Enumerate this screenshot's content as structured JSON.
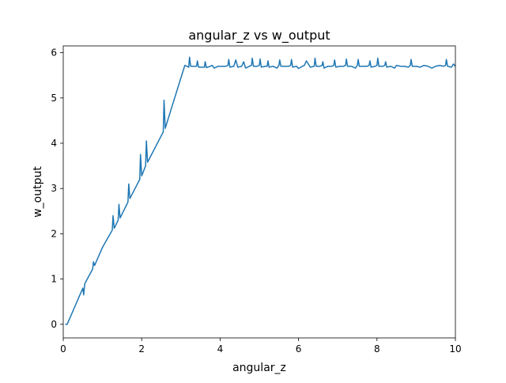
{
  "chart_data": {
    "type": "line",
    "title": "angular_z vs w_output",
    "xlabel": "angular_z",
    "ylabel": "w_output",
    "xlim": [
      0,
      10
    ],
    "ylim": [
      -0.3,
      6.15
    ],
    "xticks": [
      0,
      2,
      4,
      6,
      8,
      10
    ],
    "xtick_labels": [
      "0",
      "2",
      "4",
      "6",
      "8",
      "10"
    ],
    "yticks": [
      0,
      1,
      2,
      3,
      4,
      5,
      6
    ],
    "ytick_labels": [
      "0",
      "1",
      "2",
      "3",
      "4",
      "5",
      "6"
    ],
    "grid": false,
    "series_color": "#1f77b4",
    "series": [
      {
        "x": [
          0.05,
          0.1,
          0.5,
          0.52,
          0.55,
          0.75,
          0.77,
          0.8,
          1.0,
          1.25,
          1.27,
          1.3,
          1.4,
          1.42,
          1.45,
          1.65,
          1.67,
          1.7,
          1.95,
          1.97,
          2.0,
          2.1,
          2.12,
          2.15,
          2.55,
          2.57,
          2.6,
          3.1,
          3.15,
          3.2,
          3.22,
          3.25,
          3.4,
          3.42,
          3.45,
          3.6,
          3.62,
          3.65,
          3.75,
          3.8,
          3.85,
          3.95,
          4.05,
          4.15,
          4.2,
          4.22,
          4.25,
          4.35,
          4.4,
          4.45,
          4.55,
          4.6,
          4.65,
          4.75,
          4.8,
          4.82,
          4.85,
          4.95,
          5.0,
          5.02,
          5.05,
          5.15,
          5.2,
          5.22,
          5.25,
          5.35,
          5.45,
          5.5,
          5.52,
          5.55,
          5.65,
          5.75,
          5.8,
          5.82,
          5.85,
          5.95,
          6.0,
          6.1,
          6.15,
          6.2,
          6.3,
          6.4,
          6.42,
          6.45,
          6.55,
          6.6,
          6.62,
          6.65,
          6.75,
          6.85,
          6.9,
          6.92,
          6.95,
          7.05,
          7.15,
          7.2,
          7.22,
          7.25,
          7.35,
          7.45,
          7.5,
          7.52,
          7.55,
          7.65,
          7.75,
          7.8,
          7.82,
          7.85,
          7.95,
          8.0,
          8.02,
          8.05,
          8.15,
          8.2,
          8.22,
          8.25,
          8.35,
          8.45,
          8.5,
          8.6,
          8.7,
          8.8,
          8.85,
          8.87,
          8.9,
          9.0,
          9.1,
          9.2,
          9.3,
          9.4,
          9.5,
          9.6,
          9.7,
          9.75,
          9.77,
          9.8,
          9.9,
          9.95,
          10.0
        ],
        "y": [
          0.0,
          0.0,
          0.8,
          0.65,
          0.9,
          1.22,
          1.38,
          1.3,
          1.7,
          2.08,
          2.4,
          2.12,
          2.3,
          2.65,
          2.35,
          2.7,
          3.1,
          2.78,
          3.2,
          3.75,
          3.28,
          3.5,
          4.05,
          3.58,
          4.25,
          4.95,
          4.33,
          5.72,
          5.7,
          5.68,
          5.9,
          5.7,
          5.7,
          5.82,
          5.68,
          5.68,
          5.8,
          5.67,
          5.7,
          5.72,
          5.66,
          5.7,
          5.7,
          5.7,
          5.72,
          5.85,
          5.68,
          5.7,
          5.84,
          5.68,
          5.7,
          5.8,
          5.66,
          5.7,
          5.72,
          5.88,
          5.7,
          5.7,
          5.72,
          5.86,
          5.68,
          5.7,
          5.7,
          5.82,
          5.68,
          5.7,
          5.66,
          5.72,
          5.84,
          5.7,
          5.7,
          5.7,
          5.72,
          5.85,
          5.68,
          5.7,
          5.65,
          5.7,
          5.72,
          5.82,
          5.68,
          5.7,
          5.88,
          5.7,
          5.7,
          5.72,
          5.8,
          5.66,
          5.7,
          5.7,
          5.72,
          5.84,
          5.68,
          5.7,
          5.7,
          5.72,
          5.86,
          5.7,
          5.7,
          5.66,
          5.72,
          5.85,
          5.7,
          5.7,
          5.7,
          5.72,
          5.82,
          5.68,
          5.7,
          5.72,
          5.88,
          5.7,
          5.7,
          5.72,
          5.8,
          5.68,
          5.7,
          5.66,
          5.72,
          5.7,
          5.7,
          5.68,
          5.72,
          5.85,
          5.7,
          5.7,
          5.68,
          5.72,
          5.7,
          5.66,
          5.7,
          5.72,
          5.7,
          5.72,
          5.85,
          5.7,
          5.68,
          5.75,
          5.7
        ]
      }
    ]
  }
}
